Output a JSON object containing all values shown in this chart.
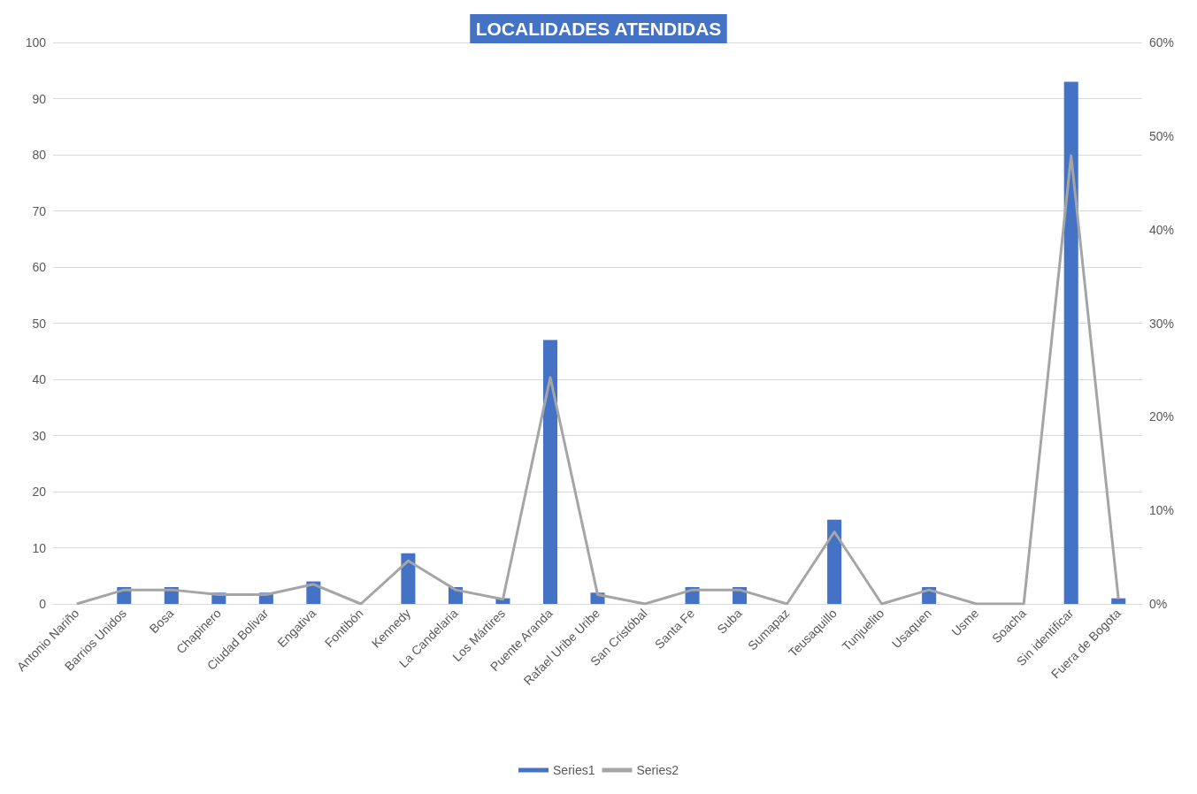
{
  "chart_data": {
    "type": "bar",
    "title": "LOCALIDADES ATENDIDAS",
    "categories": [
      "Antonio Nariño",
      "Barrios Unidos",
      "Bosa",
      "Chapinero",
      "Ciudad Bolivar",
      "Engativa",
      "Fontibón",
      "Kennedy",
      "La Candelaria",
      "Los Mártires",
      "Puente Aranda",
      "Rafael Uribe Uribe",
      "San Cristóbal",
      "Santa Fe",
      "Suba",
      "Sumapaz",
      "Teusaquillo",
      "Tunjuelito",
      "Usaquen",
      "Usme",
      "Soacha",
      "Sin identificar",
      "Fuera de Bogota"
    ],
    "series": [
      {
        "name": "Series1",
        "color": "#4472c4",
        "values": [
          0,
          3,
          3,
          2,
          2,
          4,
          0,
          9,
          3,
          1,
          47,
          2,
          0,
          3,
          3,
          0,
          15,
          0,
          3,
          0,
          0,
          93,
          1
        ]
      },
      {
        "name": "Series2",
        "type": "line",
        "axis": "y2",
        "color": "#a5a5a5",
        "values": [
          0,
          1.5,
          1.5,
          1.0,
          1.0,
          2.1,
          0,
          4.6,
          1.5,
          0.5,
          24.2,
          1.0,
          0,
          1.5,
          1.5,
          0,
          7.7,
          0,
          1.5,
          0,
          0,
          47.9,
          0.5
        ]
      }
    ],
    "ylim": [
      0,
      100
    ],
    "yticks": [
      0,
      10,
      20,
      30,
      40,
      50,
      60,
      70,
      80,
      90,
      100
    ],
    "y2lim": [
      0,
      60
    ],
    "y2ticks": [
      {
        "value": 0,
        "label": "0%"
      },
      {
        "value": 10,
        "label": "10%"
      },
      {
        "value": 20,
        "label": "20%"
      },
      {
        "value": 30,
        "label": "30%"
      },
      {
        "value": 40,
        "label": "40%"
      },
      {
        "value": 50,
        "label": "50%"
      },
      {
        "value": 60,
        "label": "60%"
      }
    ],
    "grid": "y",
    "legend": "bottom",
    "marker": "none",
    "line_style": "solid"
  }
}
